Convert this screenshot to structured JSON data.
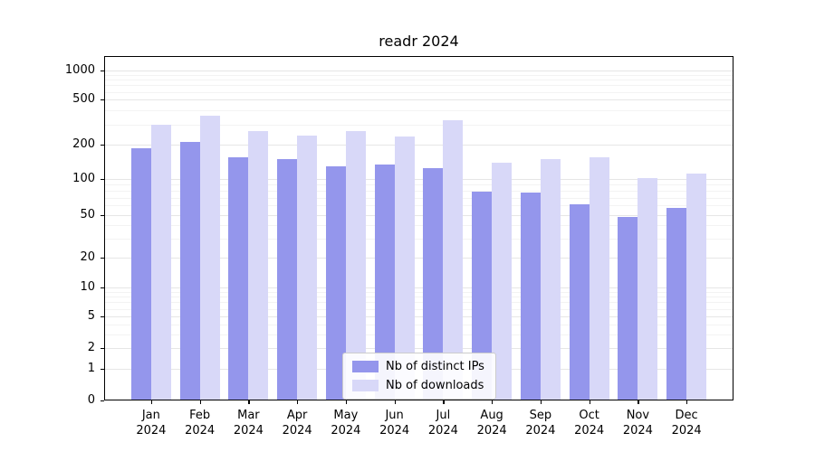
{
  "chart_data": {
    "type": "bar",
    "title": "readr 2024",
    "categories": [
      "Jan\n2024",
      "Feb\n2024",
      "Mar\n2024",
      "Apr\n2024",
      "May\n2024",
      "Jun\n2024",
      "Jul\n2024",
      "Aug\n2024",
      "Sep\n2024",
      "Oct\n2024",
      "Nov\n2024",
      "Dec\n2024"
    ],
    "series": [
      {
        "name": "Nb of distinct IPs",
        "color": "#9496ec",
        "values": [
          185,
          210,
          155,
          150,
          130,
          135,
          125,
          78,
          77,
          62,
          48,
          57
        ]
      },
      {
        "name": "Nb of downloads",
        "color": "#d8d8f8",
        "values": [
          300,
          360,
          265,
          240,
          265,
          235,
          330,
          140,
          150,
          155,
          102,
          112
        ]
      }
    ],
    "xlabel": "",
    "ylabel": "",
    "yscale": "log",
    "y_ticks": [
      0,
      1,
      2,
      5,
      10,
      20,
      50,
      100,
      200,
      500,
      1000
    ],
    "ylim": [
      0,
      1200
    ],
    "grid": true,
    "legend_position": "lower center"
  }
}
